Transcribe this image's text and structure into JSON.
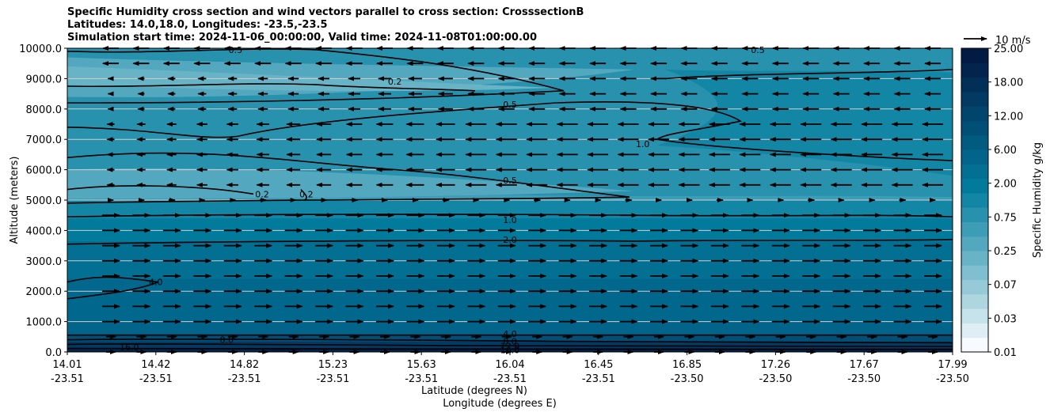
{
  "chart_data": {
    "type": "contourf-cross-section",
    "title_lines": [
      "Specific Humidity cross section and wind vectors parallel to cross section: CrosssectionB",
      "Latitudes: 14.0,18.0, Longitudes: -23.5,-23.5",
      "Simulation start time: 2024-11-06_00:00:00, Valid time: 2024-11-08T01:00:00.00"
    ],
    "ylabel": "Altitude (meters)",
    "xlabel_lat": "Latitude (degrees N)",
    "xlabel_lon": "Longitude (degrees E)",
    "ylim": [
      0,
      10000
    ],
    "y_ticks": [
      "0.0",
      "1000.0",
      "2000.0",
      "3000.0",
      "4000.0",
      "5000.0",
      "6000.0",
      "7000.0",
      "8000.0",
      "9000.0",
      "10000.0"
    ],
    "x_ticks": [
      {
        "lat": "14.01",
        "lon": "-23.51"
      },
      {
        "lat": "14.42",
        "lon": "-23.51"
      },
      {
        "lat": "14.82",
        "lon": "-23.51"
      },
      {
        "lat": "15.23",
        "lon": "-23.51"
      },
      {
        "lat": "15.63",
        "lon": "-23.51"
      },
      {
        "lat": "16.04",
        "lon": "-23.51"
      },
      {
        "lat": "16.45",
        "lon": "-23.51"
      },
      {
        "lat": "16.85",
        "lon": "-23.50"
      },
      {
        "lat": "17.26",
        "lon": "-23.50"
      },
      {
        "lat": "17.67",
        "lon": "-23.50"
      },
      {
        "lat": "17.99",
        "lon": "-23.50"
      }
    ],
    "colorbar": {
      "label": "Specific Humidity g/kg",
      "tick_labels": [
        "0.01",
        "0.03",
        "0.07",
        "0.25",
        "0.75",
        "2.00",
        "6.00",
        "12.00",
        "18.00",
        "25.00"
      ],
      "colors": [
        "#f7fbff",
        "#deeef4",
        "#c6e2ea",
        "#aed6e1",
        "#97cad8",
        "#80bfd0",
        "#69b3c7",
        "#53a8bf",
        "#3d9cb6",
        "#2891ad",
        "#1386a5",
        "#027a9c",
        "#026f93",
        "#02648a",
        "#015a80",
        "#014f77",
        "#01456d",
        "#023a63",
        "#022f58",
        "#03244d",
        "#031a43"
      ]
    },
    "quiver_key": "10 m/s",
    "contour_labels": [
      {
        "text": "0.5",
        "x": 0.19,
        "y": 9950
      },
      {
        "text": "0.5",
        "x": 0.78,
        "y": 9950
      },
      {
        "text": "0.2",
        "x": 0.37,
        "y": 8900
      },
      {
        "text": "0.5",
        "x": 0.5,
        "y": 8150
      },
      {
        "text": "1.0",
        "x": 0.65,
        "y": 6850
      },
      {
        "text": "0.2",
        "x": 0.22,
        "y": 5200
      },
      {
        "text": "0.2",
        "x": 0.27,
        "y": 5200
      },
      {
        "text": "0.5",
        "x": 0.5,
        "y": 5650
      },
      {
        "text": "1.0",
        "x": 0.5,
        "y": 4350
      },
      {
        "text": "2.0",
        "x": 0.5,
        "y": 3700
      },
      {
        "text": "4.0",
        "x": 0.1,
        "y": 2300
      },
      {
        "text": "8.0",
        "x": 0.18,
        "y": 400
      },
      {
        "text": "16.0",
        "x": 0.07,
        "y": 150
      },
      {
        "text": "4.0",
        "x": 0.5,
        "y": 600
      },
      {
        "text": "8.0",
        "x": 0.5,
        "y": 350
      },
      {
        "text": "12.0",
        "x": 0.5,
        "y": 200
      },
      {
        "text": "16.0",
        "x": 0.5,
        "y": 70
      }
    ]
  }
}
